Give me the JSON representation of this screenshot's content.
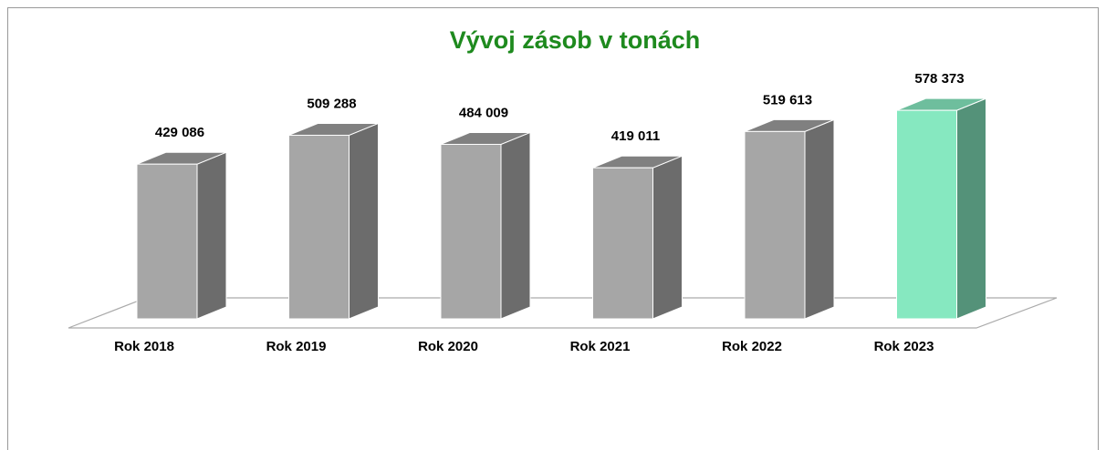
{
  "chart_data": {
    "type": "bar3d",
    "title": "Vývoj zásob v tonách",
    "categories": [
      "Rok 2018",
      "Rok 2019",
      "Rok 2020",
      "Rok 2021",
      "Rok 2022",
      "Rok 2023"
    ],
    "values": [
      429086,
      509288,
      484009,
      419011,
      519613,
      578373
    ],
    "value_labels": [
      "429 086",
      "509 288",
      "484 009",
      "419 011",
      "519 613",
      "578 373"
    ],
    "colors": [
      "#a6a6a6",
      "#a6a6a6",
      "#a6a6a6",
      "#a6a6a6",
      "#a6a6a6",
      "#86e8c0"
    ],
    "ylim": [
      0,
      700000
    ]
  }
}
